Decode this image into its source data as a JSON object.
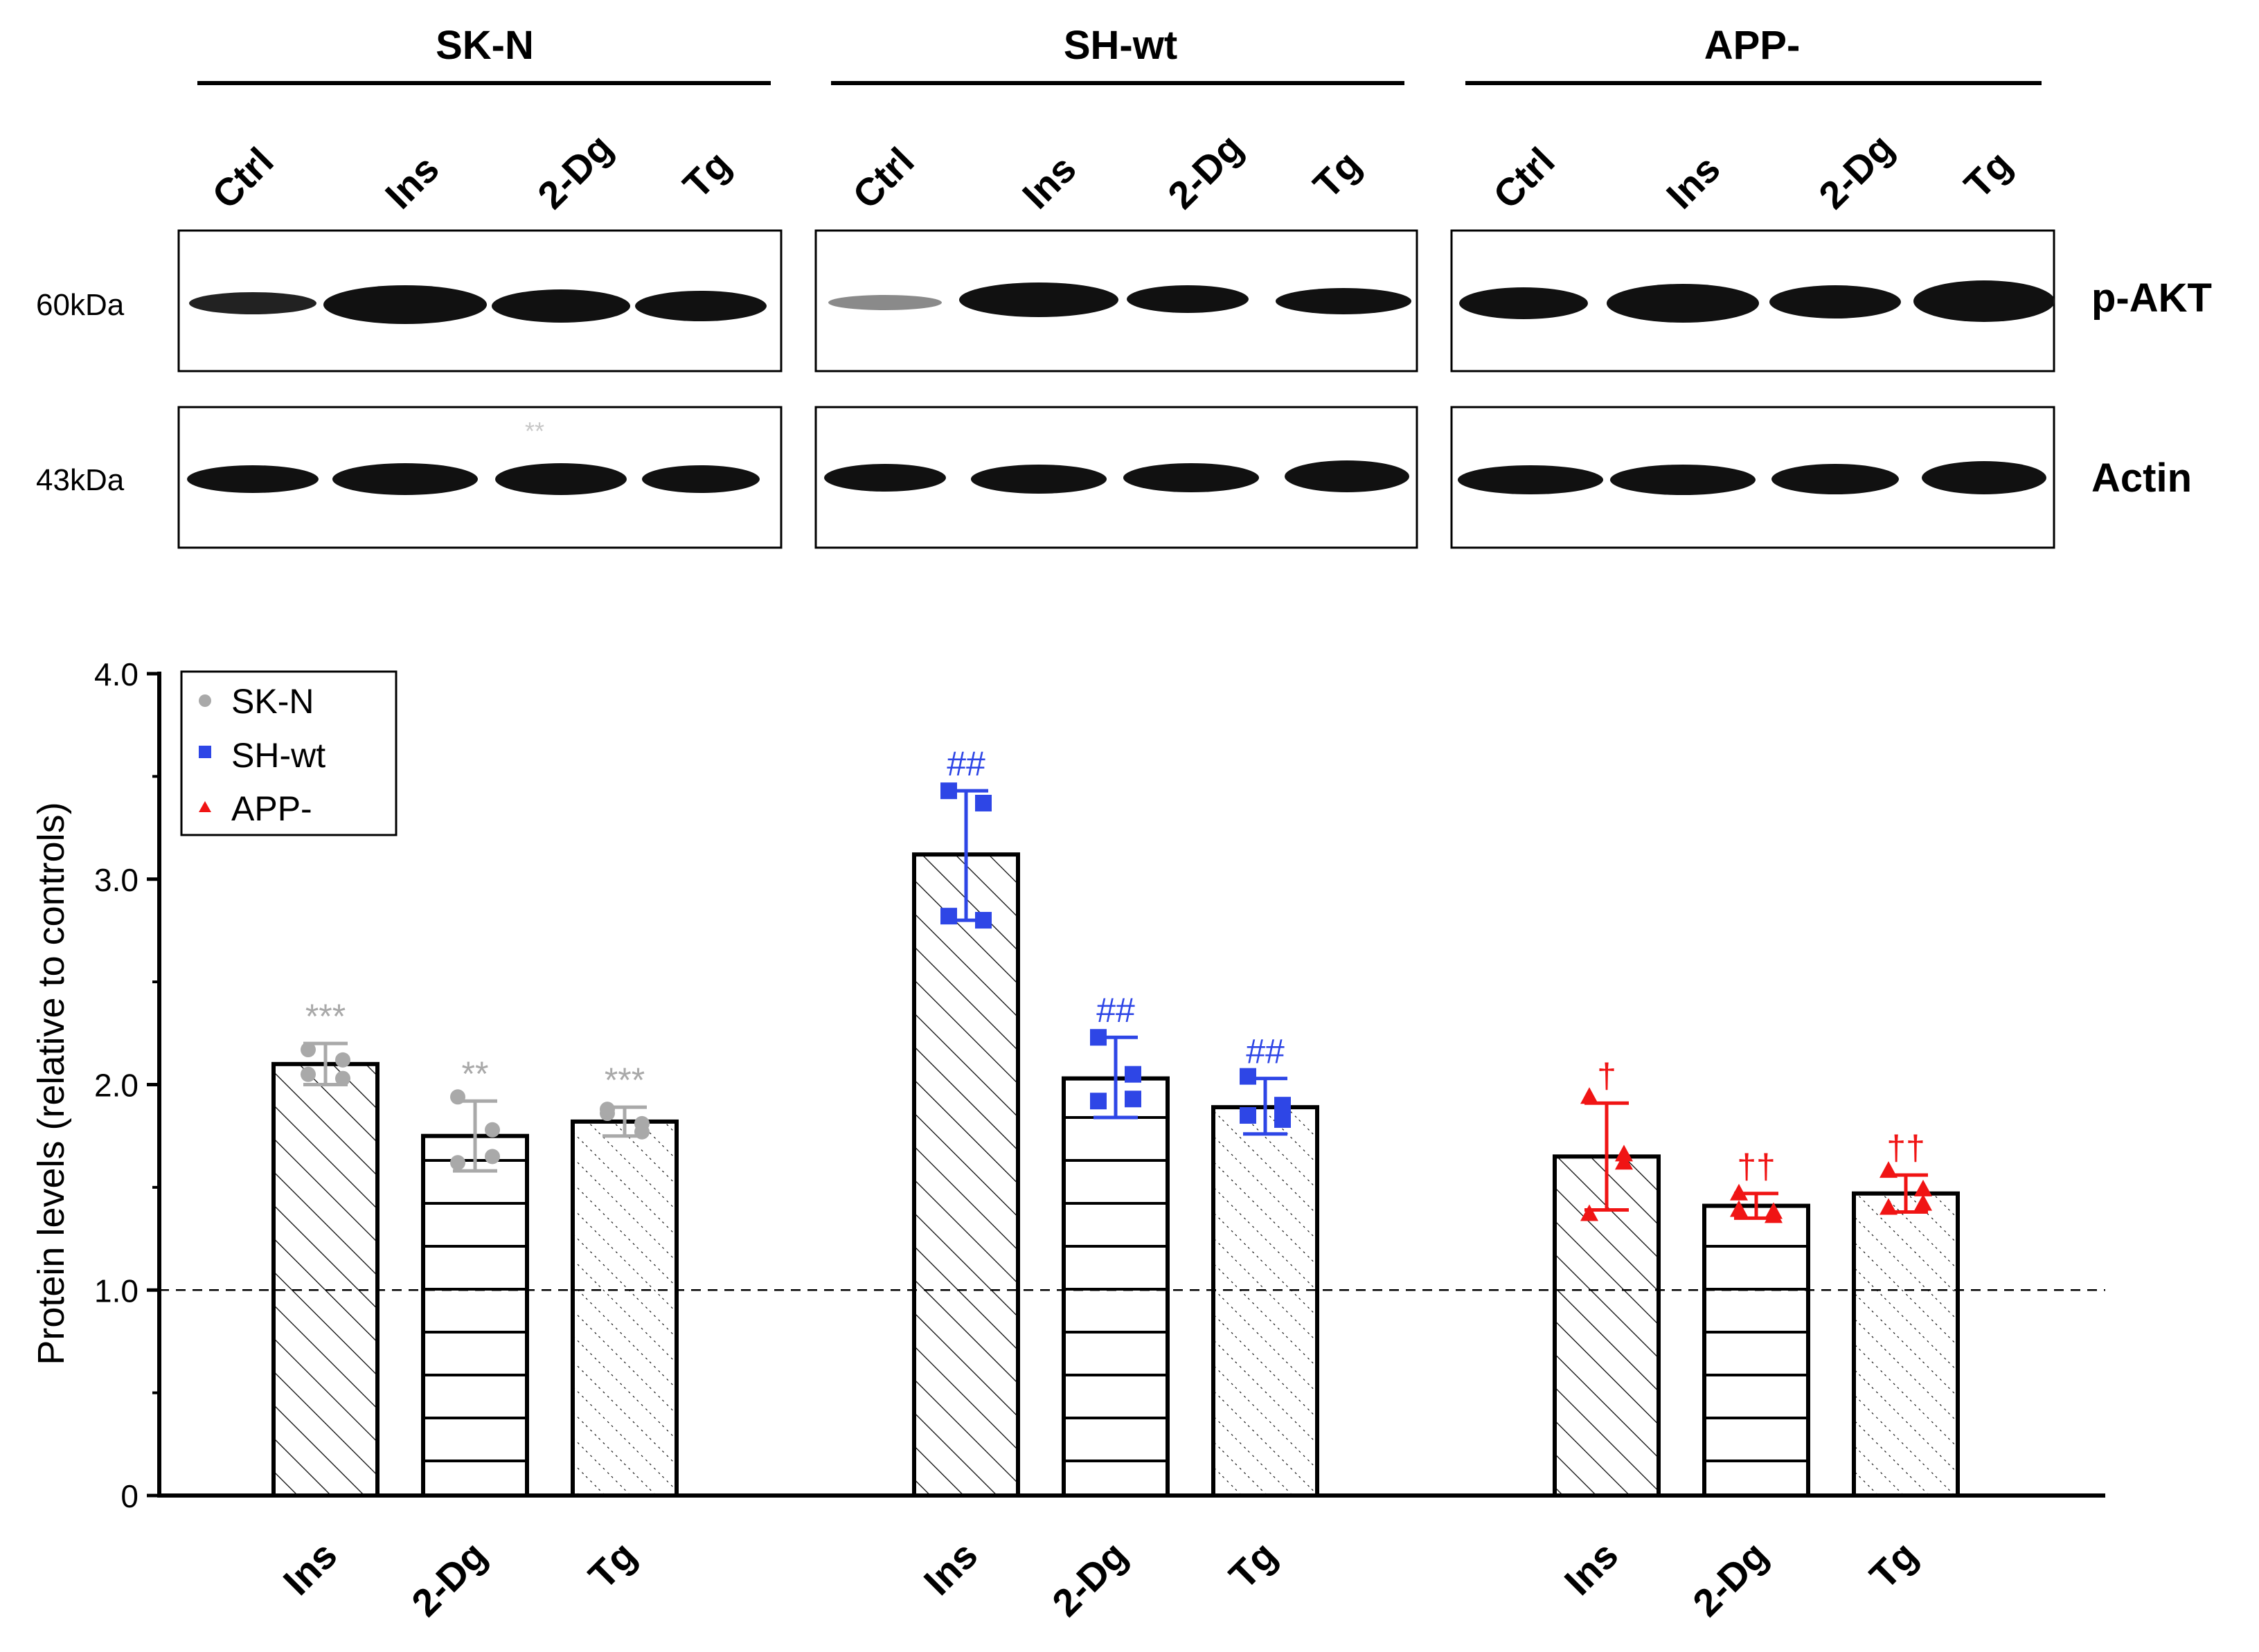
{
  "blot": {
    "groups": [
      {
        "name": "SK-N",
        "lanes": [
          "Ctrl",
          "Ins",
          "2-Dg",
          "Tg"
        ]
      },
      {
        "name": "SH-wt",
        "lanes": [
          "Ctrl",
          "Ins",
          "2-Dg",
          "Tg"
        ]
      },
      {
        "name": "APP-",
        "lanes": [
          "Ctrl",
          "Ins",
          "2-Dg",
          "Tg"
        ]
      }
    ],
    "rows": [
      {
        "marker": "60kDa",
        "protein": "p-AKT"
      },
      {
        "marker": "43kDa",
        "protein": "Actin"
      }
    ],
    "stray_marks": [
      "**"
    ]
  },
  "chart_data": {
    "type": "bar",
    "ylabel": "Protein levels (relative to controls)",
    "ylim": [
      0,
      4.0
    ],
    "yticks": [
      "0",
      "1.0",
      "2.0",
      "3.0",
      "4.0"
    ],
    "reference_line": 1.0,
    "legend": [
      {
        "name": "SK-N",
        "marker": "circle",
        "color": "#a9a9a9"
      },
      {
        "name": "SH-wt",
        "marker": "square",
        "color": "#2e46e6"
      },
      {
        "name": "APP-",
        "marker": "triangle",
        "color": "#f01414"
      }
    ],
    "categories": [
      "Ins",
      "2-Dg",
      "Tg"
    ],
    "series": [
      {
        "name": "SK-N",
        "color": "#a9a9a9",
        "bars": [
          {
            "category": "Ins",
            "value": 2.1,
            "err_low": 2.0,
            "err_high": 2.2,
            "points": [
              2.17,
              2.12,
              2.03,
              2.05
            ],
            "sig": "***"
          },
          {
            "category": "2-Dg",
            "value": 1.75,
            "err_low": 1.58,
            "err_high": 1.92,
            "points": [
              1.94,
              1.78,
              1.65,
              1.62
            ],
            "sig": "**"
          },
          {
            "category": "Tg",
            "value": 1.82,
            "err_low": 1.75,
            "err_high": 1.89,
            "points": [
              1.86,
              1.81,
              1.77,
              1.88
            ],
            "sig": "***"
          }
        ]
      },
      {
        "name": "SH-wt",
        "color": "#2e46e6",
        "bars": [
          {
            "category": "Ins",
            "value": 3.12,
            "err_low": 2.8,
            "err_high": 3.43,
            "points": [
              3.43,
              3.37,
              2.8,
              2.82
            ],
            "sig": "##"
          },
          {
            "category": "2-Dg",
            "value": 2.03,
            "err_low": 1.84,
            "err_high": 2.23,
            "points": [
              2.23,
              2.05,
              1.93,
              1.92
            ],
            "sig": "##"
          },
          {
            "category": "Tg",
            "value": 1.89,
            "err_low": 1.76,
            "err_high": 2.03,
            "points": [
              2.04,
              1.9,
              1.83,
              1.85
            ],
            "sig": "##"
          }
        ]
      },
      {
        "name": "APP-",
        "color": "#f01414",
        "bars": [
          {
            "category": "Ins",
            "value": 1.65,
            "err_low": 1.39,
            "err_high": 1.91,
            "points": [
              1.94,
              1.66,
              1.62,
              1.37
            ],
            "sig": "†"
          },
          {
            "category": "2-Dg",
            "value": 1.41,
            "err_low": 1.35,
            "err_high": 1.47,
            "points": [
              1.47,
              1.38,
              1.36,
              1.39
            ],
            "sig": "††"
          },
          {
            "category": "Tg",
            "value": 1.47,
            "err_low": 1.38,
            "err_high": 1.56,
            "points": [
              1.58,
              1.49,
              1.42,
              1.4
            ],
            "sig": "††"
          }
        ]
      }
    ]
  }
}
